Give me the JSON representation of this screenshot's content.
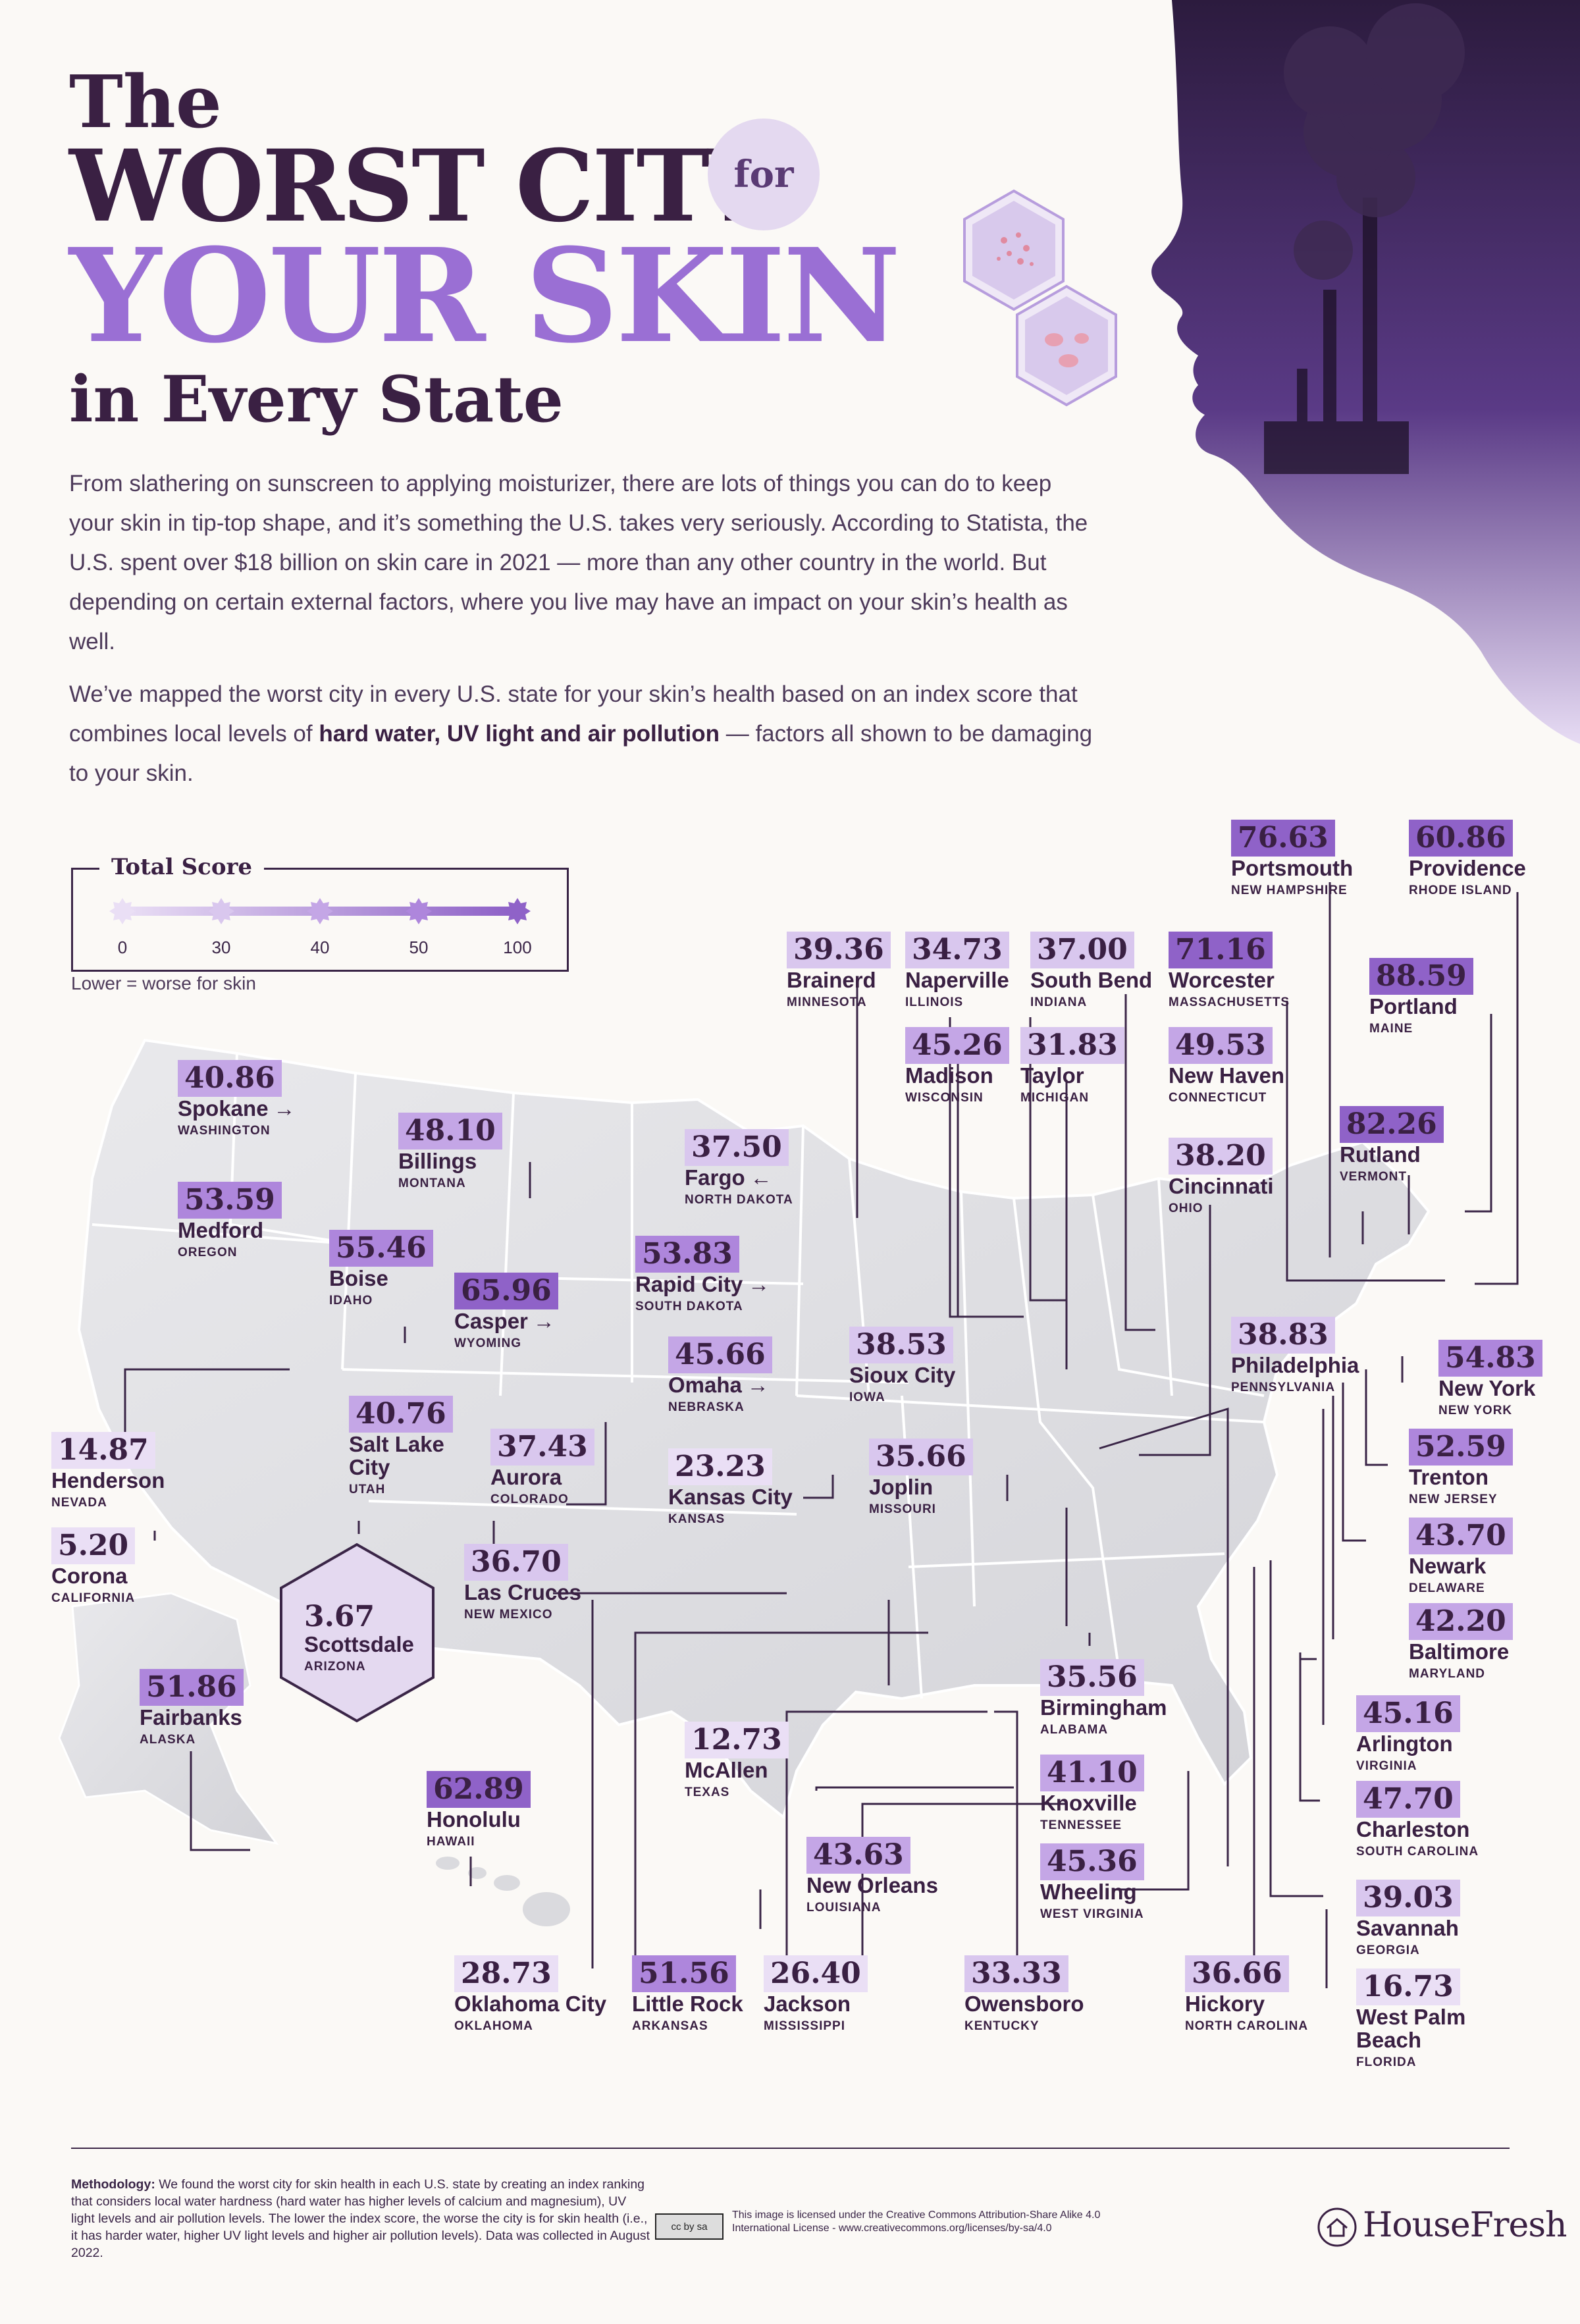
{
  "title": {
    "line1": "The",
    "line2": "WORST CITY",
    "for": "for",
    "line3": "YOUR SKIN",
    "line4": "in Every State"
  },
  "intro": {
    "p1": "From slathering on sunscreen to applying moisturizer, there are lots of things you can do to keep your skin in tip-top shape, and it’s something the U.S. takes very seriously. According to Statista, the U.S. spent over $18 billion on skin care in 2021 — more than any other country in the world. But depending on certain external factors, where you live may have an impact on your skin’s health as well.",
    "p2_before": "We’ve mapped the worst city in every U.S. state for your skin’s health based on an index score that combines local levels of ",
    "p2_bold": "hard water, UV light and air pollution",
    "p2_after": " — factors all shown to be damaging to your skin."
  },
  "legend": {
    "title": "Total Score",
    "ticks": [
      "0",
      "30",
      "40",
      "50",
      "100"
    ],
    "note": "Lower = worse for skin"
  },
  "colors": {
    "dark": "#3a2043",
    "accent": "#9a6fd4",
    "scale": [
      "#eadff5",
      "#d9c7ee",
      "#c4a6e6",
      "#ae86dc",
      "#8f62c8"
    ]
  },
  "cities": [
    {
      "id": "washington",
      "score": "40.86",
      "city": "Spokane",
      "state": "WASHINGTON",
      "arrow": "→"
    },
    {
      "id": "montana",
      "score": "48.10",
      "city": "Billings",
      "state": "MONTANA"
    },
    {
      "id": "oregon",
      "score": "53.59",
      "city": "Medford",
      "state": "OREGON"
    },
    {
      "id": "idaho",
      "score": "55.46",
      "city": "Boise",
      "state": "IDAHO"
    },
    {
      "id": "wyoming",
      "score": "65.96",
      "city": "Casper",
      "state": "WYOMING",
      "arrow": "→"
    },
    {
      "id": "northdakota",
      "score": "37.50",
      "city": "Fargo",
      "state": "NORTH DAKOTA",
      "arrow": "←"
    },
    {
      "id": "southdakota",
      "score": "53.83",
      "city": "Rapid City",
      "state": "SOUTH DAKOTA",
      "arrow": "→"
    },
    {
      "id": "nebraska",
      "score": "45.66",
      "city": "Omaha",
      "state": "NEBRASKA",
      "arrow": "→"
    },
    {
      "id": "iowa",
      "score": "38.53",
      "city": "Sioux City",
      "state": "IOWA"
    },
    {
      "id": "kansas",
      "score": "23.23",
      "city": "Kansas City",
      "state": "KANSAS"
    },
    {
      "id": "missouri",
      "score": "35.66",
      "city": "Joplin",
      "state": "MISSOURI"
    },
    {
      "id": "nevada",
      "score": "14.87",
      "city": "Henderson",
      "state": "NEVADA"
    },
    {
      "id": "utah",
      "score": "40.76",
      "city": "Salt Lake City",
      "state": "UTAH"
    },
    {
      "id": "colorado",
      "score": "37.43",
      "city": "Aurora",
      "state": "COLORADO"
    },
    {
      "id": "california",
      "score": "5.20",
      "city": "Corona",
      "state": "CALIFORNIA"
    },
    {
      "id": "newmexico",
      "score": "36.70",
      "city": "Las Cruces",
      "state": "NEW MEXICO"
    },
    {
      "id": "arizona",
      "score": "3.67",
      "city": "Scottsdale",
      "state": "ARIZONA"
    },
    {
      "id": "alaska",
      "score": "51.86",
      "city": "Fairbanks",
      "state": "ALASKA"
    },
    {
      "id": "hawaii",
      "score": "62.89",
      "city": "Honolulu",
      "state": "HAWAII"
    },
    {
      "id": "texas",
      "score": "12.73",
      "city": "McAllen",
      "state": "TEXAS"
    },
    {
      "id": "louisiana",
      "score": "43.63",
      "city": "New Orleans",
      "state": "LOUISIANA"
    },
    {
      "id": "oklahoma",
      "score": "28.73",
      "city": "Oklahoma City",
      "state": "OKLAHOMA"
    },
    {
      "id": "arkansas",
      "score": "51.56",
      "city": "Little Rock",
      "state": "ARKANSAS"
    },
    {
      "id": "mississippi",
      "score": "26.40",
      "city": "Jackson",
      "state": "MISSISSIPPI"
    },
    {
      "id": "kentucky",
      "score": "33.33",
      "city": "Owensboro",
      "state": "KENTUCKY"
    },
    {
      "id": "northcarolina",
      "score": "36.66",
      "city": "Hickory",
      "state": "NORTH CAROLINA"
    },
    {
      "id": "minnesota",
      "score": "39.36",
      "city": "Brainerd",
      "state": "MINNESOTA"
    },
    {
      "id": "illinois",
      "score": "34.73",
      "city": "Naperville",
      "state": "ILLINOIS"
    },
    {
      "id": "indiana",
      "score": "37.00",
      "city": "South Bend",
      "state": "INDIANA"
    },
    {
      "id": "massachusetts",
      "score": "71.16",
      "city": "Worcester",
      "state": "MASSACHUSETTS"
    },
    {
      "id": "newhampshire",
      "score": "76.63",
      "city": "Portsmouth",
      "state": "NEW HAMPSHIRE"
    },
    {
      "id": "rhodeisland",
      "score": "60.86",
      "city": "Providence",
      "state": "RHODE ISLAND"
    },
    {
      "id": "maine",
      "score": "88.59",
      "city": "Portland",
      "state": "MAINE"
    },
    {
      "id": "wisconsin",
      "score": "45.26",
      "city": "Madison",
      "state": "WISCONSIN"
    },
    {
      "id": "michigan",
      "score": "31.83",
      "city": "Taylor",
      "state": "MICHIGAN"
    },
    {
      "id": "connecticut",
      "score": "49.53",
      "city": "New Haven",
      "state": "CONNECTICUT"
    },
    {
      "id": "vermont",
      "score": "82.26",
      "city": "Rutland",
      "state": "VERMONT"
    },
    {
      "id": "ohio",
      "score": "38.20",
      "city": "Cincinnati",
      "state": "OHIO"
    },
    {
      "id": "pennsylvania",
      "score": "38.83",
      "city": "Philadelphia",
      "state": "PENNSYLVANIA"
    },
    {
      "id": "newyork",
      "score": "54.83",
      "city": "New York",
      "state": "NEW YORK"
    },
    {
      "id": "newjersey",
      "score": "52.59",
      "city": "Trenton",
      "state": "NEW JERSEY"
    },
    {
      "id": "delaware",
      "score": "43.70",
      "city": "Newark",
      "state": "DELAWARE"
    },
    {
      "id": "maryland",
      "score": "42.20",
      "city": "Baltimore",
      "state": "MARYLAND"
    },
    {
      "id": "alabama",
      "score": "35.56",
      "city": "Birmingham",
      "state": "ALABAMA"
    },
    {
      "id": "tennessee",
      "score": "41.10",
      "city": "Knoxville",
      "state": "TENNESSEE"
    },
    {
      "id": "westvirginia",
      "score": "45.36",
      "city": "Wheeling",
      "state": "WEST VIRGINIA"
    },
    {
      "id": "virginia",
      "score": "45.16",
      "city": "Arlington",
      "state": "VIRGINIA"
    },
    {
      "id": "southcarolina",
      "score": "47.70",
      "city": "Charleston",
      "state": "SOUTH CAROLINA"
    },
    {
      "id": "georgia",
      "score": "39.03",
      "city": "Savannah",
      "state": "GEORGIA"
    },
    {
      "id": "florida",
      "score": "16.73",
      "city": "West Palm Beach",
      "state": "FLORIDA"
    }
  ],
  "footer": {
    "method_label": "Methodology:",
    "method_text": " We found the worst city for skin health in each U.S. state by creating an index ranking that considers local water hardness (hard water has higher levels of calcium and magnesium), UV light levels and air pollution levels. The lower the index score, the worse the city is for skin health (i.e., it has harder water, higher UV light levels and higher air pollution levels). Data was collected in August 2022.",
    "cc_badge": "cc by sa",
    "license": "This image is licensed under the Creative Commons Attribution-Share Alike 4.0 International License - www.creativecommons.org/licenses/by-sa/4.0",
    "brand": "HouseFresh"
  }
}
